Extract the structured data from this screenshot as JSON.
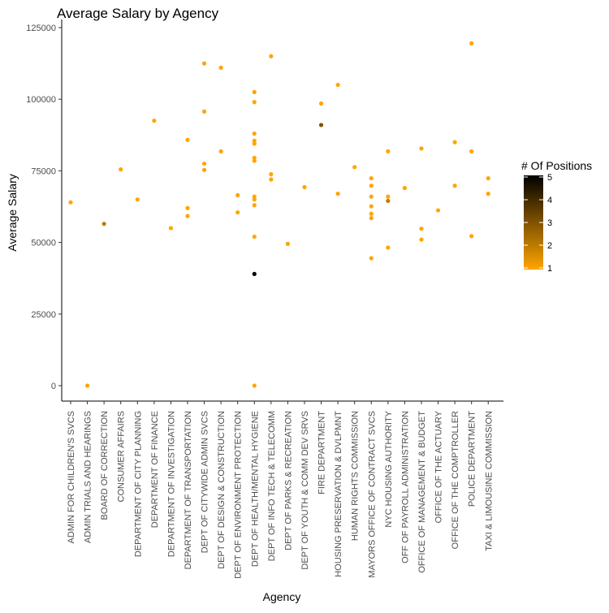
{
  "chart_data": {
    "type": "scatter",
    "title": "Average Salary by Agency",
    "xlabel": "Agency",
    "ylabel": "Average Salary",
    "ylim": [
      0,
      125000
    ],
    "y_ticks": [
      0,
      25000,
      50000,
      75000,
      100000,
      125000
    ],
    "y_tick_labels": [
      "0",
      "25000",
      "50000",
      "75000",
      "100000",
      "125000"
    ],
    "grid": false,
    "categories": [
      "ADMIN FOR CHILDREN'S SVCS",
      "ADMIN TRIALS AND HEARINGS",
      "BOARD OF CORRECTION",
      "CONSUMER AFFAIRS",
      "DEPARTMENT OF CITY PLANNING",
      "DEPARTMENT OF FINANCE",
      "DEPARTMENT OF INVESTIGATION",
      "DEPARTMENT OF TRANSPORTATION",
      "DEPT OF CITYWIDE ADMIN SVCS",
      "DEPT OF DESIGN & CONSTRUCTION",
      "DEPT OF ENVIRONMENT PROTECTION",
      "DEPT OF HEALTH/MENTAL HYGIENE",
      "DEPT OF INFO TECH & TELECOMM",
      "DEPT OF PARKS & RECREATION",
      "DEPT OF YOUTH & COMM DEV SRVS",
      "FIRE DEPARTMENT",
      "HOUSING PRESERVATION & DVLPMNT",
      "HUMAN RIGHTS COMMISSION",
      "MAYORS OFFICE OF CONTRACT SVCS",
      "NYC HOUSING AUTHORITY",
      "OFF OF PAYROLL ADMINISTRATION",
      "OFFICE OF MANAGEMENT & BUDGET",
      "OFFICE OF THE ACTUARY",
      "OFFICE OF THE COMPTROLLER",
      "POLICE DEPARTMENT",
      "TAXI & LIMOUSINE COMMISSION"
    ],
    "points": [
      {
        "x": "ADMIN FOR CHILDREN'S SVCS",
        "y": 64000,
        "positions": 1
      },
      {
        "x": "ADMIN TRIALS AND HEARINGS",
        "y": 0,
        "positions": 1
      },
      {
        "x": "BOARD OF CORRECTION",
        "y": 56500,
        "positions": 2
      },
      {
        "x": "CONSUMER AFFAIRS",
        "y": 75500,
        "positions": 1
      },
      {
        "x": "DEPARTMENT OF CITY PLANNING",
        "y": 65000,
        "positions": 1
      },
      {
        "x": "DEPARTMENT OF FINANCE",
        "y": 92500,
        "positions": 1
      },
      {
        "x": "DEPARTMENT OF INVESTIGATION",
        "y": 55000,
        "positions": 1
      },
      {
        "x": "DEPARTMENT OF TRANSPORTATION",
        "y": 85800,
        "positions": 1
      },
      {
        "x": "DEPARTMENT OF TRANSPORTATION",
        "y": 62000,
        "positions": 1
      },
      {
        "x": "DEPARTMENT OF TRANSPORTATION",
        "y": 59200,
        "positions": 1
      },
      {
        "x": "DEPT OF CITYWIDE ADMIN SVCS",
        "y": 112500,
        "positions": 1
      },
      {
        "x": "DEPT OF CITYWIDE ADMIN SVCS",
        "y": 95700,
        "positions": 1
      },
      {
        "x": "DEPT OF CITYWIDE ADMIN SVCS",
        "y": 77500,
        "positions": 1
      },
      {
        "x": "DEPT OF CITYWIDE ADMIN SVCS",
        "y": 75300,
        "positions": 1
      },
      {
        "x": "DEPT OF DESIGN & CONSTRUCTION",
        "y": 111000,
        "positions": 1
      },
      {
        "x": "DEPT OF DESIGN & CONSTRUCTION",
        "y": 81800,
        "positions": 1
      },
      {
        "x": "DEPT OF ENVIRONMENT PROTECTION",
        "y": 66500,
        "positions": 1
      },
      {
        "x": "DEPT OF ENVIRONMENT PROTECTION",
        "y": 60500,
        "positions": 1
      },
      {
        "x": "DEPT OF HEALTH/MENTAL HYGIENE",
        "y": 102500,
        "positions": 1
      },
      {
        "x": "DEPT OF HEALTH/MENTAL HYGIENE",
        "y": 99000,
        "positions": 1
      },
      {
        "x": "DEPT OF HEALTH/MENTAL HYGIENE",
        "y": 88000,
        "positions": 1
      },
      {
        "x": "DEPT OF HEALTH/MENTAL HYGIENE",
        "y": 85500,
        "positions": 1
      },
      {
        "x": "DEPT OF HEALTH/MENTAL HYGIENE",
        "y": 84500,
        "positions": 1
      },
      {
        "x": "DEPT OF HEALTH/MENTAL HYGIENE",
        "y": 79500,
        "positions": 1
      },
      {
        "x": "DEPT OF HEALTH/MENTAL HYGIENE",
        "y": 78500,
        "positions": 1
      },
      {
        "x": "DEPT OF HEALTH/MENTAL HYGIENE",
        "y": 66000,
        "positions": 1
      },
      {
        "x": "DEPT OF HEALTH/MENTAL HYGIENE",
        "y": 65000,
        "positions": 1
      },
      {
        "x": "DEPT OF HEALTH/MENTAL HYGIENE",
        "y": 63000,
        "positions": 1
      },
      {
        "x": "DEPT OF HEALTH/MENTAL HYGIENE",
        "y": 52000,
        "positions": 1
      },
      {
        "x": "DEPT OF HEALTH/MENTAL HYGIENE",
        "y": 39000,
        "positions": 5
      },
      {
        "x": "DEPT OF HEALTH/MENTAL HYGIENE",
        "y": 0,
        "positions": 1
      },
      {
        "x": "DEPT OF INFO TECH & TELECOMM",
        "y": 115000,
        "positions": 1
      },
      {
        "x": "DEPT OF INFO TECH & TELECOMM",
        "y": 73800,
        "positions": 1
      },
      {
        "x": "DEPT OF INFO TECH & TELECOMM",
        "y": 72000,
        "positions": 1
      },
      {
        "x": "DEPT OF PARKS & RECREATION",
        "y": 49500,
        "positions": 1
      },
      {
        "x": "DEPT OF YOUTH & COMM DEV SRVS",
        "y": 69300,
        "positions": 1
      },
      {
        "x": "FIRE DEPARTMENT",
        "y": 98500,
        "positions": 1
      },
      {
        "x": "FIRE DEPARTMENT",
        "y": 91000,
        "positions": 3
      },
      {
        "x": "HOUSING PRESERVATION & DVLPMNT",
        "y": 105000,
        "positions": 1
      },
      {
        "x": "HOUSING PRESERVATION & DVLPMNT",
        "y": 67000,
        "positions": 1
      },
      {
        "x": "HUMAN RIGHTS COMMISSION",
        "y": 76300,
        "positions": 1
      },
      {
        "x": "MAYORS OFFICE OF CONTRACT SVCS",
        "y": 72400,
        "positions": 1
      },
      {
        "x": "MAYORS OFFICE OF CONTRACT SVCS",
        "y": 69800,
        "positions": 1
      },
      {
        "x": "MAYORS OFFICE OF CONTRACT SVCS",
        "y": 66000,
        "positions": 1
      },
      {
        "x": "MAYORS OFFICE OF CONTRACT SVCS",
        "y": 62600,
        "positions": 1
      },
      {
        "x": "MAYORS OFFICE OF CONTRACT SVCS",
        "y": 60000,
        "positions": 1
      },
      {
        "x": "MAYORS OFFICE OF CONTRACT SVCS",
        "y": 58500,
        "positions": 1
      },
      {
        "x": "MAYORS OFFICE OF CONTRACT SVCS",
        "y": 44500,
        "positions": 1
      },
      {
        "x": "NYC HOUSING AUTHORITY",
        "y": 81800,
        "positions": 1
      },
      {
        "x": "NYC HOUSING AUTHORITY",
        "y": 66000,
        "positions": 1
      },
      {
        "x": "NYC HOUSING AUTHORITY",
        "y": 64500,
        "positions": 2
      },
      {
        "x": "NYC HOUSING AUTHORITY",
        "y": 48200,
        "positions": 1
      },
      {
        "x": "OFF OF PAYROLL ADMINISTRATION",
        "y": 69000,
        "positions": 1
      },
      {
        "x": "OFFICE OF MANAGEMENT & BUDGET",
        "y": 82800,
        "positions": 1
      },
      {
        "x": "OFFICE OF MANAGEMENT & BUDGET",
        "y": 54800,
        "positions": 1
      },
      {
        "x": "OFFICE OF MANAGEMENT & BUDGET",
        "y": 51000,
        "positions": 1
      },
      {
        "x": "OFFICE OF THE ACTUARY",
        "y": 61200,
        "positions": 1
      },
      {
        "x": "OFFICE OF THE COMPTROLLER",
        "y": 85000,
        "positions": 1
      },
      {
        "x": "OFFICE OF THE COMPTROLLER",
        "y": 69800,
        "positions": 1
      },
      {
        "x": "POLICE DEPARTMENT",
        "y": 119500,
        "positions": 1
      },
      {
        "x": "POLICE DEPARTMENT",
        "y": 81800,
        "positions": 1
      },
      {
        "x": "POLICE DEPARTMENT",
        "y": 52200,
        "positions": 1
      },
      {
        "x": "TAXI & LIMOUSINE COMMISSION",
        "y": 72400,
        "positions": 1
      },
      {
        "x": "TAXI & LIMOUSINE COMMISSION",
        "y": 67000,
        "positions": 1
      }
    ],
    "legend": {
      "title": "# Of Positions",
      "placement": "right",
      "range": [
        1,
        5
      ],
      "ticks": [
        1,
        2,
        3,
        4,
        5
      ],
      "tick_labels": [
        "1",
        "2",
        "3",
        "4",
        "5"
      ],
      "color_low": "#FFA500",
      "color_high": "#000000"
    }
  }
}
